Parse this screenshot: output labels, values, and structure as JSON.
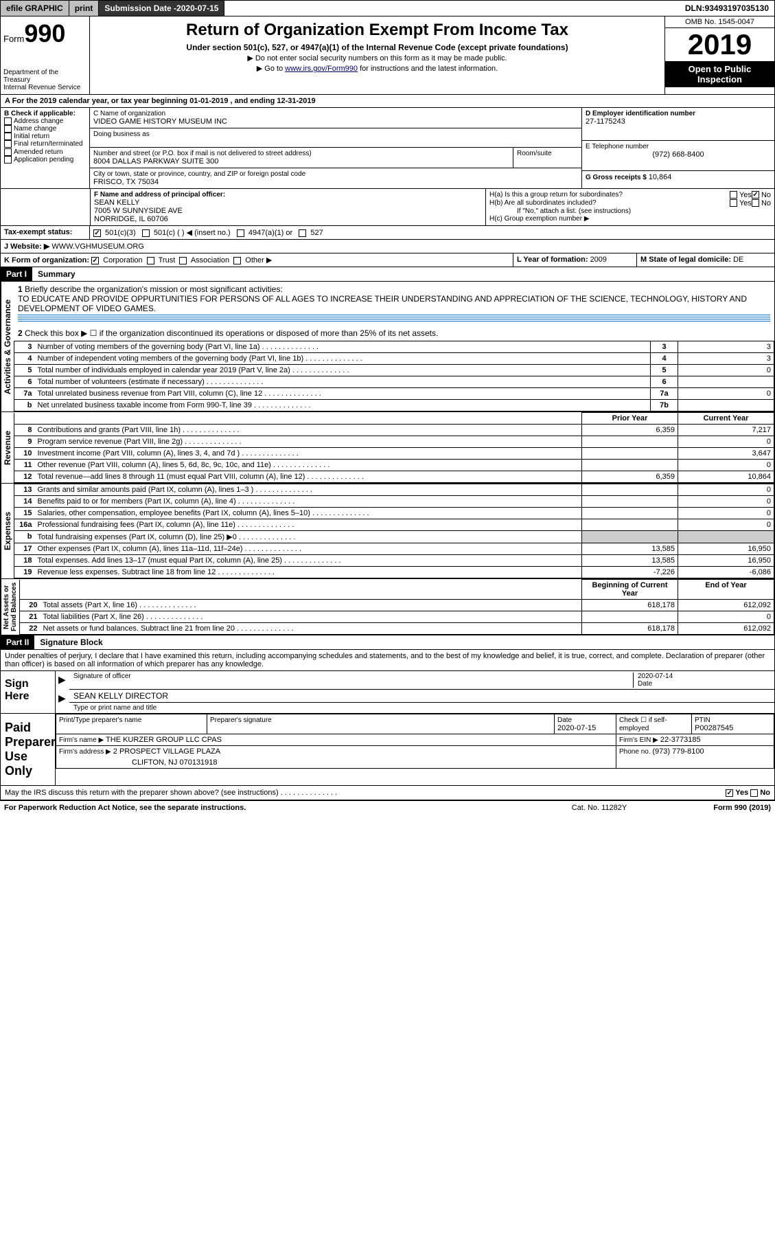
{
  "topbar": {
    "efile": "efile GRAPHIC",
    "print": "print",
    "subdate_lbl": "Submission Date - ",
    "subdate": "2020-07-15",
    "dln_lbl": "DLN: ",
    "dln": "93493197035130"
  },
  "header": {
    "form_prefix": "Form",
    "form_num": "990",
    "dept": "Department of the Treasury\nInternal Revenue Service",
    "title": "Return of Organization Exempt From Income Tax",
    "sub": "Under section 501(c), 527, or 4947(a)(1) of the Internal Revenue Code (except private foundations)",
    "note1": "▶ Do not enter social security numbers on this form as it may be made public.",
    "note2_a": "▶ Go to ",
    "note2_link": "www.irs.gov/Form990",
    "note2_b": " for instructions and the latest information.",
    "omb": "OMB No. 1545-0047",
    "year": "2019",
    "badge": "Open to Public Inspection"
  },
  "taxyear": "A For the 2019 calendar year, or tax year beginning 01-01-2019   , and ending 12-31-2019",
  "B": {
    "title": "B Check if applicable:",
    "opts": [
      "Address change",
      "Name change",
      "Initial return",
      "Final return/terminated",
      "Amended return",
      "Application pending"
    ]
  },
  "C": {
    "name_lbl": "C Name of organization",
    "name": "VIDEO GAME HISTORY MUSEUM INC",
    "dba_lbl": "Doing business as",
    "addr_lbl": "Number and street (or P.O. box if mail is not delivered to street address)",
    "room_lbl": "Room/suite",
    "addr": "8004 DALLAS PARKWAY SUITE 300",
    "city_lbl": "City or town, state or province, country, and ZIP or foreign postal code",
    "city": "FRISCO, TX  75034"
  },
  "D": {
    "lbl": "D Employer identification number",
    "val": "27-1175243"
  },
  "E": {
    "lbl": "E Telephone number",
    "val": "(972) 668-8400"
  },
  "G": {
    "lbl": "G Gross receipts $ ",
    "val": "10,864"
  },
  "F": {
    "lbl": "F  Name and address of principal officer:",
    "name": "SEAN KELLY",
    "addr1": "7005 W SUNNYSIDE AVE",
    "addr2": "NORRIDGE, IL  60706"
  },
  "H": {
    "a": "H(a)  Is this a group return for subordinates?",
    "b": "H(b)  Are all subordinates included?",
    "b_note": "If \"No,\" attach a list. (see instructions)",
    "c": "H(c)  Group exemption number ▶",
    "yes": "Yes",
    "no": "No"
  },
  "I": {
    "lbl": "Tax-exempt status:",
    "opts": [
      "501(c)(3)",
      "501(c) (   ) ◀ (insert no.)",
      "4947(a)(1) or",
      "527"
    ]
  },
  "J": {
    "lbl": "J   Website: ▶",
    "val": "WWW.VGHMUSEUM.ORG"
  },
  "K": {
    "lbl": "K Form of organization:",
    "opts": [
      "Corporation",
      "Trust",
      "Association",
      "Other ▶"
    ]
  },
  "L": {
    "lbl": "L Year of formation: ",
    "val": "2009"
  },
  "M": {
    "lbl": "M State of legal domicile: ",
    "val": "DE"
  },
  "part1": {
    "hdr": "Part I",
    "title": "Summary"
  },
  "p1": {
    "l1": "Briefly describe the organization's mission or most significant activities:",
    "mission": "TO EDUCATE AND PROVIDE OPPURTUNITIES FOR PERSONS OF ALL AGES TO INCREASE THEIR UNDERSTANDING AND APPRECIATION OF THE SCIENCE, TECHNOLOGY, HISTORY AND DEVELOPMENT OF VIDEO GAMES.",
    "l2": "Check this box ▶ ☐  if the organization discontinued its operations or disposed of more than 25% of its net assets.",
    "rows_a": [
      {
        "n": "3",
        "t": "Number of voting members of the governing body (Part VI, line 1a)",
        "box": "3",
        "v": "3"
      },
      {
        "n": "4",
        "t": "Number of independent voting members of the governing body (Part VI, line 1b)",
        "box": "4",
        "v": "3"
      },
      {
        "n": "5",
        "t": "Total number of individuals employed in calendar year 2019 (Part V, line 2a)",
        "box": "5",
        "v": "0"
      },
      {
        "n": "6",
        "t": "Total number of volunteers (estimate if necessary)",
        "box": "6",
        "v": ""
      },
      {
        "n": "7a",
        "t": "Total unrelated business revenue from Part VIII, column (C), line 12",
        "box": "7a",
        "v": "0"
      },
      {
        "n": "b",
        "t": "Net unrelated business taxable income from Form 990-T, line 39",
        "box": "7b",
        "v": ""
      }
    ],
    "prior": "Prior Year",
    "current": "Current Year",
    "rev": [
      {
        "n": "8",
        "t": "Contributions and grants (Part VIII, line 1h)",
        "p": "6,359",
        "c": "7,217"
      },
      {
        "n": "9",
        "t": "Program service revenue (Part VIII, line 2g)",
        "p": "",
        "c": "0"
      },
      {
        "n": "10",
        "t": "Investment income (Part VIII, column (A), lines 3, 4, and 7d )",
        "p": "",
        "c": "3,647"
      },
      {
        "n": "11",
        "t": "Other revenue (Part VIII, column (A), lines 5, 6d, 8c, 9c, 10c, and 11e)",
        "p": "",
        "c": "0"
      },
      {
        "n": "12",
        "t": "Total revenue—add lines 8 through 11 (must equal Part VIII, column (A), line 12)",
        "p": "6,359",
        "c": "10,864"
      }
    ],
    "exp": [
      {
        "n": "13",
        "t": "Grants and similar amounts paid (Part IX, column (A), lines 1–3 )",
        "p": "",
        "c": "0"
      },
      {
        "n": "14",
        "t": "Benefits paid to or for members (Part IX, column (A), line 4)",
        "p": "",
        "c": "0"
      },
      {
        "n": "15",
        "t": "Salaries, other compensation, employee benefits (Part IX, column (A), lines 5–10)",
        "p": "",
        "c": "0"
      },
      {
        "n": "16a",
        "t": "Professional fundraising fees (Part IX, column (A), line 11e)",
        "p": "",
        "c": "0"
      },
      {
        "n": "b",
        "t": "Total fundraising expenses (Part IX, column (D), line 25) ▶0",
        "p": "shade",
        "c": "shade"
      },
      {
        "n": "17",
        "t": "Other expenses (Part IX, column (A), lines 11a–11d, 11f–24e)",
        "p": "13,585",
        "c": "16,950"
      },
      {
        "n": "18",
        "t": "Total expenses. Add lines 13–17 (must equal Part IX, column (A), line 25)",
        "p": "13,585",
        "c": "16,950"
      },
      {
        "n": "19",
        "t": "Revenue less expenses. Subtract line 18 from line 12",
        "p": "-7,226",
        "c": "-6,086"
      }
    ],
    "boy": "Beginning of Current Year",
    "eoy": "End of Year",
    "net": [
      {
        "n": "20",
        "t": "Total assets (Part X, line 16)",
        "p": "618,178",
        "c": "612,092"
      },
      {
        "n": "21",
        "t": "Total liabilities (Part X, line 26)",
        "p": "",
        "c": "0"
      },
      {
        "n": "22",
        "t": "Net assets or fund balances. Subtract line 21 from line 20",
        "p": "618,178",
        "c": "612,092"
      }
    ],
    "vtabs": {
      "ag": "Activities & Governance",
      "rev": "Revenue",
      "exp": "Expenses",
      "net": "Net Assets or\nFund Balances"
    }
  },
  "part2": {
    "hdr": "Part II",
    "title": "Signature Block"
  },
  "p2": {
    "decl": "Under penalties of perjury, I declare that I have examined this return, including accompanying schedules and statements, and to the best of my knowledge and belief, it is true, correct, and complete. Declaration of preparer (other than officer) is based on all information of which preparer has any knowledge.",
    "sign_here": "Sign Here",
    "sig_officer": "Signature of officer",
    "date": "Date",
    "date_v": "2020-07-14",
    "officer": "SEAN KELLY  DIRECTOR",
    "officer_lbl": "Type or print name and title",
    "paid": "Paid Preparer Use Only",
    "prep_name_lbl": "Print/Type preparer's name",
    "prep_sig_lbl": "Preparer's signature",
    "prep_date": "2020-07-15",
    "self_emp": "Check ☐ if self-employed",
    "ptin_lbl": "PTIN",
    "ptin": "P00287545",
    "firm_name_lbl": "Firm's name    ▶",
    "firm_name": "THE KURZER GROUP LLC CPAS",
    "firm_ein_lbl": "Firm's EIN ▶",
    "firm_ein": "22-3773185",
    "firm_addr_lbl": "Firm's address ▶",
    "firm_addr1": "2 PROSPECT VILLAGE PLAZA",
    "firm_addr2": "CLIFTON, NJ  070131918",
    "phone_lbl": "Phone no. ",
    "phone": "(973) 779-8100",
    "discuss": "May the IRS discuss this return with the preparer shown above? (see instructions)"
  },
  "footer": {
    "pra": "For Paperwork Reduction Act Notice, see the separate instructions.",
    "cat": "Cat. No. 11282Y",
    "form": "Form 990 (2019)"
  }
}
